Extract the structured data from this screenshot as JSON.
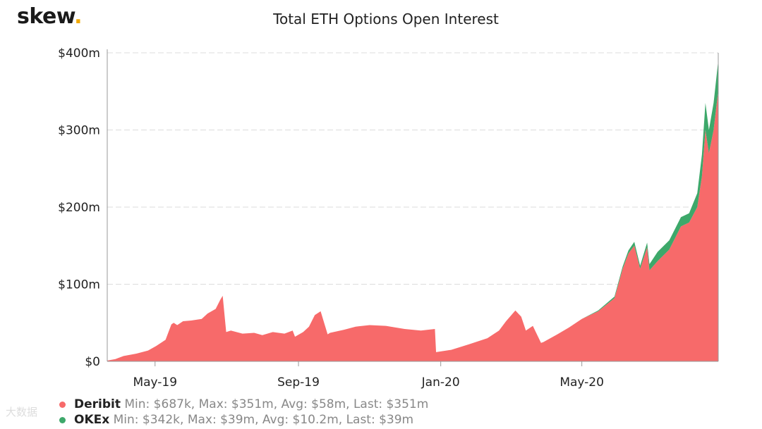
{
  "brand": {
    "name": "skew",
    "dot": "."
  },
  "watermark": "大数据",
  "colors": {
    "deribit": "#f76a6a",
    "okex": "#3da86a",
    "grid": "#dcdcdc",
    "brand_dot": "#f2a900"
  },
  "legend": [
    {
      "name": "Deribit",
      "stats": "Min: $687k, Max: $351m, Avg: $58m, Last: $351m",
      "color": "#f76a6a"
    },
    {
      "name": "OKEx",
      "stats": "Min: $342k, Max: $39m, Avg: $10.2m, Last: $39m",
      "color": "#3da86a"
    }
  ],
  "chart_data": {
    "type": "area",
    "stacked": true,
    "title": "Total ETH Options Open Interest",
    "xlabel": "",
    "ylabel": "",
    "x_ticks": [
      "May-19",
      "Sep-19",
      "Jan-20",
      "May-20"
    ],
    "x_tick_dates": [
      "2019-05-01",
      "2019-09-01",
      "2020-01-01",
      "2020-05-01"
    ],
    "y_ticks": [
      "$0",
      "$100m",
      "$200m",
      "$300m",
      "$400m"
    ],
    "ylim": [
      0,
      400
    ],
    "xlim": [
      "2019-03-21",
      "2020-08-26"
    ],
    "grid": true,
    "legend_position": "bottom-left",
    "x": [
      "2019-03-21",
      "2019-03-28",
      "2019-04-04",
      "2019-04-15",
      "2019-04-25",
      "2019-05-02",
      "2019-05-10",
      "2019-05-15",
      "2019-05-17",
      "2019-05-20",
      "2019-05-25",
      "2019-06-01",
      "2019-06-10",
      "2019-06-15",
      "2019-06-22",
      "2019-06-26",
      "2019-06-28",
      "2019-07-01",
      "2019-07-05",
      "2019-07-15",
      "2019-07-25",
      "2019-08-01",
      "2019-08-10",
      "2019-08-20",
      "2019-08-27",
      "2019-08-29",
      "2019-09-05",
      "2019-09-10",
      "2019-09-15",
      "2019-09-20",
      "2019-09-26",
      "2019-09-28",
      "2019-10-10",
      "2019-10-20",
      "2019-11-01",
      "2019-11-15",
      "2019-12-01",
      "2019-12-15",
      "2019-12-27",
      "2019-12-28",
      "2020-01-10",
      "2020-01-25",
      "2020-02-10",
      "2020-02-20",
      "2020-02-26",
      "2020-03-05",
      "2020-03-10",
      "2020-03-14",
      "2020-03-20",
      "2020-03-27",
      "2020-03-29",
      "2020-04-10",
      "2020-04-20",
      "2020-05-01",
      "2020-05-15",
      "2020-05-29",
      "2020-06-05",
      "2020-06-10",
      "2020-06-15",
      "2020-06-20",
      "2020-06-26",
      "2020-06-28",
      "2020-07-05",
      "2020-07-15",
      "2020-07-25",
      "2020-08-01",
      "2020-08-08",
      "2020-08-12",
      "2020-08-15",
      "2020-08-18",
      "2020-08-22",
      "2020-08-26"
    ],
    "series": [
      {
        "name": "Deribit",
        "color": "#f76a6a",
        "values": [
          1,
          3,
          7,
          10,
          14,
          20,
          28,
          48,
          50,
          47,
          52,
          53,
          55,
          62,
          68,
          80,
          85,
          38,
          40,
          36,
          37,
          34,
          38,
          36,
          40,
          32,
          38,
          45,
          60,
          65,
          35,
          37,
          41,
          45,
          47,
          46,
          42,
          40,
          42,
          12,
          15,
          22,
          30,
          40,
          52,
          66,
          58,
          40,
          46,
          24,
          25,
          35,
          44,
          55,
          65,
          82,
          120,
          140,
          150,
          120,
          148,
          118,
          130,
          145,
          175,
          180,
          200,
          240,
          300,
          270,
          300,
          351
        ]
      },
      {
        "name": "OKEx",
        "color": "#3da86a",
        "values": [
          0,
          0,
          0,
          0,
          0,
          0,
          0,
          0,
          0,
          0,
          0,
          0,
          0,
          0,
          0,
          0,
          0,
          0,
          0,
          0,
          0,
          0,
          0,
          0,
          0,
          0,
          0,
          0,
          0,
          0,
          0,
          0,
          0,
          0,
          0,
          0,
          0,
          0,
          0,
          0,
          0,
          0,
          0,
          0,
          0,
          0,
          0,
          0,
          0,
          0,
          0,
          0,
          0,
          0,
          1,
          2,
          3,
          4,
          5,
          4,
          6,
          8,
          12,
          12,
          12,
          12,
          18,
          28,
          35,
          30,
          35,
          39
        ]
      }
    ]
  }
}
